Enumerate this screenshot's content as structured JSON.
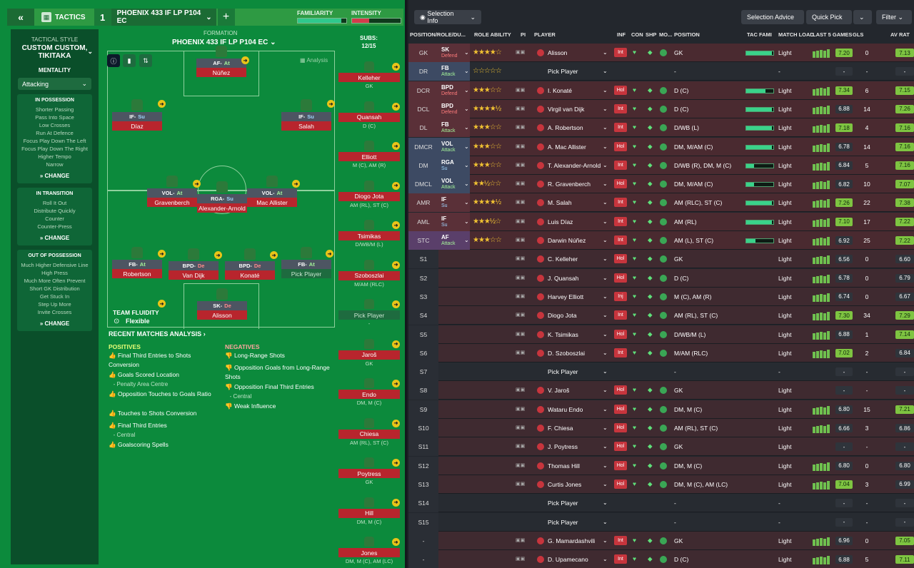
{
  "topbar": {
    "back": "«",
    "tactics_label": "TACTICS",
    "tactic_num": "1",
    "tactic_name": "PHOENIX 433 IF LP P104 EC",
    "add": "+",
    "familiarity_label": "FAMILIARITY",
    "intensity_label": "INTENSITY",
    "familiarity_level": 0.9,
    "intensity_level": 0.35
  },
  "sidebar": {
    "style_label": "TACTICAL STYLE",
    "style_value": "CUSTOM CUSTOM, TIKITAKA",
    "mentality_label": "MENTALITY",
    "mentality_value": "Attacking",
    "in_possession": {
      "title": "IN POSSESSION",
      "items": [
        "Shorter Passing",
        "Pass Into Space",
        "Low Crosses",
        "Run At Defence",
        "Focus Play Down The Left",
        "Focus Play Down The Right",
        "Higher Tempo",
        "Narrow"
      ],
      "change": "CHANGE"
    },
    "in_transition": {
      "title": "IN TRANSITION",
      "items": [
        "Roll It Out",
        "Distribute Quickly",
        "Counter",
        "Counter-Press"
      ],
      "change": "CHANGE"
    },
    "out_possession": {
      "title": "OUT OF POSSESSION",
      "items": [
        "Much Higher Defensive Line",
        "High Press",
        "Much More Often Prevent Short GK Distribution",
        "Get Stuck In",
        "Step Up More",
        "Invite Crosses"
      ],
      "change": "CHANGE"
    }
  },
  "pitch": {
    "formation_label": "FORMATION",
    "formation_name": "PHOENIX 433 IF LP P104 EC",
    "analysis": "Analysis",
    "team_fluidity_label": "TEAM FLUIDITY",
    "team_fluidity_value": "Flexible",
    "players": [
      {
        "role": "AF",
        "duty": "At",
        "name": "Núñez"
      },
      {
        "role": "IF",
        "duty": "Su",
        "name": "Díaz"
      },
      {
        "role": "IF",
        "duty": "Su",
        "name": "Salah"
      },
      {
        "role": "VOL",
        "duty": "At",
        "name": "Gravenberch"
      },
      {
        "role": "RGA",
        "duty": "Su",
        "name": "Alexander-Arnold"
      },
      {
        "role": "VOL",
        "duty": "At",
        "name": "Mac Allister"
      },
      {
        "role": "FB",
        "duty": "At",
        "name": "Robertson"
      },
      {
        "role": "BPD",
        "duty": "De",
        "name": "Van Dijk"
      },
      {
        "role": "BPD",
        "duty": "De",
        "name": "Konaté"
      },
      {
        "role": "FB",
        "duty": "At",
        "name": "Pick Player"
      },
      {
        "role": "SK",
        "duty": "De",
        "name": "Alisson"
      }
    ]
  },
  "subs": {
    "label": "SUBS:",
    "count": "12/15",
    "list": [
      {
        "name": "Kelleher",
        "pos": "GK"
      },
      {
        "name": "Quansah",
        "pos": "D (C)"
      },
      {
        "name": "Elliott",
        "pos": "M (C), AM (R)"
      },
      {
        "name": "Diogo Jota",
        "pos": "AM (RL), ST (C)"
      },
      {
        "name": "Tsimikas",
        "pos": "D/WB/M (L)"
      },
      {
        "name": "Szoboszlai",
        "pos": "M/AM (RLC)"
      },
      {
        "name": "Pick Player",
        "pos": "-"
      },
      {
        "name": "Jaroš",
        "pos": "GK"
      },
      {
        "name": "Endo",
        "pos": "DM, M (C)"
      },
      {
        "name": "Chiesa",
        "pos": "AM (RL), ST (C)"
      },
      {
        "name": "Poytress",
        "pos": "GK"
      },
      {
        "name": "Hill",
        "pos": "DM, M (C)"
      },
      {
        "name": "Jones",
        "pos": "DM, M (C), AM (LC)"
      }
    ]
  },
  "analysis": {
    "title": "RECENT MATCHES ANALYSIS",
    "positives_label": "POSITIVES",
    "negatives_label": "NEGATIVES",
    "positives": [
      {
        "t": "Final Third Entries to Shots Conversion",
        "s": ""
      },
      {
        "t": "Goals Scored Location",
        "s": "- Penalty Area Centre"
      },
      {
        "t": "Opposition Touches to Goals Ratio",
        "s": ""
      },
      {
        "t": "Touches to Shots Conversion",
        "s": ""
      },
      {
        "t": "Final Third Entries",
        "s": "- Central"
      },
      {
        "t": "Goalscoring Spells",
        "s": ""
      }
    ],
    "negatives": [
      {
        "t": "Long-Range Shots",
        "s": ""
      },
      {
        "t": "Opposition Goals from Long-Range Shots",
        "s": ""
      },
      {
        "t": "Opposition Final Third Entries",
        "s": "- Central"
      },
      {
        "t": "Weak Influence",
        "s": ""
      }
    ]
  },
  "right": {
    "selection_info": "Selection Info",
    "selection_advice": "Selection Advice",
    "quick_pick": "Quick Pick",
    "filter": "Filter",
    "headers": [
      "POSITION/ROLE/DU...",
      "ROLE ABILITY",
      "PI",
      "PLAYER",
      "INF",
      "CON",
      "SHP",
      "MO...",
      "POSITION",
      "TAC FAMI",
      "MATCH LOAD",
      "LAST 5 GAMES",
      "GLS",
      "AV RAT"
    ],
    "rows": [
      {
        "slot": "GK",
        "role": "SK",
        "duty": "Defend",
        "stars": "★★★★☆",
        "player": "Alisson",
        "inf": "Int",
        "pos": "GK",
        "tac": 0.95,
        "load": "Light",
        "avg": "7.20",
        "gls": "0",
        "avr": "7.13"
      },
      {
        "slot": "DR",
        "role": "FB",
        "duty": "Attack",
        "stars": "☆☆☆☆☆",
        "player": "Pick Player",
        "inf": "",
        "pos": "-",
        "tac": 0,
        "load": "-",
        "avg": "-",
        "gls": "-",
        "avr": "-"
      },
      {
        "slot": "DCR",
        "role": "BPD",
        "duty": "Defend",
        "stars": "★★★☆☆",
        "player": "I. Konaté",
        "inf": "Hol",
        "pos": "D (C)",
        "tac": 0.7,
        "load": "Light",
        "avg": "7.34",
        "gls": "6",
        "avr": "7.15"
      },
      {
        "slot": "DCL",
        "role": "BPD",
        "duty": "Defend",
        "stars": "★★★★½",
        "player": "Virgil van Dijk",
        "inf": "Int",
        "pos": "D (C)",
        "tac": 0.95,
        "load": "Light",
        "avg": "6.88",
        "gls": "14",
        "avr": "7.26"
      },
      {
        "slot": "DL",
        "role": "FB",
        "duty": "Attack",
        "stars": "★★★☆☆",
        "player": "A. Robertson",
        "inf": "Int",
        "pos": "D/WB (L)",
        "tac": 0.95,
        "load": "Light",
        "avg": "7.18",
        "gls": "4",
        "avr": "7.16"
      },
      {
        "slot": "DMCR",
        "role": "VOL",
        "duty": "Attack",
        "stars": "★★★☆☆",
        "player": "A. Mac Allister",
        "inf": "Hol",
        "pos": "DM, M/AM (C)",
        "tac": 0.95,
        "load": "Light",
        "avg": "6.78",
        "gls": "14",
        "avr": "7.16"
      },
      {
        "slot": "DM",
        "role": "RGA",
        "duty": "Su",
        "stars": "★★★☆☆",
        "player": "T. Alexander-Arnold",
        "inf": "Int",
        "pos": "D/WB (R), DM, M (C)",
        "tac": 0.3,
        "load": "Light",
        "avg": "6.84",
        "gls": "5",
        "avr": "7.16"
      },
      {
        "slot": "DMCL",
        "role": "VOL",
        "duty": "Attack",
        "stars": "★★½☆☆",
        "player": "R. Gravenberch",
        "inf": "Hol",
        "pos": "DM, M/AM (C)",
        "tac": 0.3,
        "load": "Light",
        "avg": "6.82",
        "gls": "10",
        "avr": "7.07"
      },
      {
        "slot": "AMR",
        "role": "IF",
        "duty": "Su",
        "stars": "★★★★½",
        "player": "M. Salah",
        "inf": "Int",
        "pos": "AM (RLC), ST (C)",
        "tac": 0.95,
        "load": "Light",
        "avg": "7.26",
        "gls": "22",
        "avr": "7.38"
      },
      {
        "slot": "AML",
        "role": "IF",
        "duty": "Su",
        "stars": "★★★½☆",
        "player": "Luis Díaz",
        "inf": "Int",
        "pos": "AM (RL)",
        "tac": 0.95,
        "load": "Light",
        "avg": "7.10",
        "gls": "17",
        "avr": "7.22"
      },
      {
        "slot": "STC",
        "role": "AF",
        "duty": "Attack",
        "stars": "★★★☆☆",
        "player": "Darwin Núñez",
        "inf": "Int",
        "pos": "AM (L), ST (C)",
        "tac": 0.35,
        "load": "Light",
        "avg": "6.92",
        "gls": "25",
        "avr": "7.22"
      },
      {
        "slot": "S1",
        "role": "",
        "duty": "",
        "stars": "",
        "player": "C. Kelleher",
        "inf": "Hol",
        "pos": "GK",
        "tac": 0,
        "load": "Light",
        "avg": "6.56",
        "gls": "0",
        "avr": "6.60"
      },
      {
        "slot": "S2",
        "role": "",
        "duty": "",
        "stars": "",
        "player": "J. Quansah",
        "inf": "Hol",
        "pos": "D (C)",
        "tac": 0,
        "load": "Light",
        "avg": "6.78",
        "gls": "0",
        "avr": "6.79"
      },
      {
        "slot": "S3",
        "role": "",
        "duty": "",
        "stars": "",
        "player": "Harvey Elliott",
        "inf": "Inj",
        "pos": "M (C), AM (R)",
        "tac": 0,
        "load": "Light",
        "avg": "6.74",
        "gls": "0",
        "avr": "6.67"
      },
      {
        "slot": "S4",
        "role": "",
        "duty": "",
        "stars": "",
        "player": "Diogo Jota",
        "inf": "Int",
        "pos": "AM (RL), ST (C)",
        "tac": 0,
        "load": "Light",
        "avg": "7.30",
        "gls": "34",
        "avr": "7.29"
      },
      {
        "slot": "S5",
        "role": "",
        "duty": "",
        "stars": "",
        "player": "K. Tsimikas",
        "inf": "Hol",
        "pos": "D/WB/M (L)",
        "tac": 0,
        "load": "Light",
        "avg": "6.88",
        "gls": "1",
        "avr": "7.14"
      },
      {
        "slot": "S6",
        "role": "",
        "duty": "",
        "stars": "",
        "player": "D. Szoboszlai",
        "inf": "Int",
        "pos": "M/AM (RLC)",
        "tac": 0,
        "load": "Light",
        "avg": "7.02",
        "gls": "2",
        "avr": "6.84"
      },
      {
        "slot": "S7",
        "role": "",
        "duty": "",
        "stars": "",
        "player": "Pick Player",
        "inf": "",
        "pos": "-",
        "tac": 0,
        "load": "-",
        "avg": "-",
        "gls": "-",
        "avr": "-"
      },
      {
        "slot": "S8",
        "role": "",
        "duty": "",
        "stars": "",
        "player": "V. Jaroš",
        "inf": "Hol",
        "pos": "GK",
        "tac": 0,
        "load": "Light",
        "avg": "-",
        "gls": "-",
        "avr": "-"
      },
      {
        "slot": "S9",
        "role": "",
        "duty": "",
        "stars": "",
        "player": "Wataru Endo",
        "inf": "Hol",
        "pos": "DM, M (C)",
        "tac": 0,
        "load": "Light",
        "avg": "6.80",
        "gls": "15",
        "avr": "7.21"
      },
      {
        "slot": "S10",
        "role": "",
        "duty": "",
        "stars": "",
        "player": "F. Chiesa",
        "inf": "Hol",
        "pos": "AM (RL), ST (C)",
        "tac": 0,
        "load": "Light",
        "avg": "6.66",
        "gls": "3",
        "avr": "6.86"
      },
      {
        "slot": "S11",
        "role": "",
        "duty": "",
        "stars": "",
        "player": "J. Poytress",
        "inf": "Hol",
        "pos": "GK",
        "tac": 0,
        "load": "Light",
        "avg": "-",
        "gls": "-",
        "avr": "-"
      },
      {
        "slot": "S12",
        "role": "",
        "duty": "",
        "stars": "",
        "player": "Thomas Hill",
        "inf": "Hol",
        "pos": "DM, M (C)",
        "tac": 0,
        "load": "Light",
        "avg": "6.80",
        "gls": "0",
        "avr": "6.80"
      },
      {
        "slot": "S13",
        "role": "",
        "duty": "",
        "stars": "",
        "player": "Curtis Jones",
        "inf": "Hol",
        "pos": "DM, M (C), AM (LC)",
        "tac": 0,
        "load": "Light",
        "avg": "7.04",
        "gls": "3",
        "avr": "6.99"
      },
      {
        "slot": "S14",
        "role": "",
        "duty": "",
        "stars": "",
        "player": "Pick Player",
        "inf": "",
        "pos": "-",
        "tac": 0,
        "load": "-",
        "avg": "-",
        "gls": "-",
        "avr": "-"
      },
      {
        "slot": "S15",
        "role": "",
        "duty": "",
        "stars": "",
        "player": "Pick Player",
        "inf": "",
        "pos": "-",
        "tac": 0,
        "load": "-",
        "avg": "-",
        "gls": "-",
        "avr": "-"
      },
      {
        "slot": "-",
        "role": "",
        "duty": "",
        "stars": "",
        "player": "G. Mamardashvili",
        "inf": "Int",
        "pos": "GK",
        "tac": 0,
        "load": "Light",
        "avg": "6.96",
        "gls": "0",
        "avr": "7.05"
      },
      {
        "slot": "-",
        "role": "",
        "duty": "",
        "stars": "",
        "player": "D. Upamecano",
        "inf": "Int",
        "pos": "D (C)",
        "tac": 0,
        "load": "Light",
        "avg": "6.88",
        "gls": "5",
        "avr": "7.11"
      }
    ]
  },
  "colors": {
    "green": "#0c8a3c",
    "red": "#b8252d",
    "bar": "#3ad28a"
  }
}
